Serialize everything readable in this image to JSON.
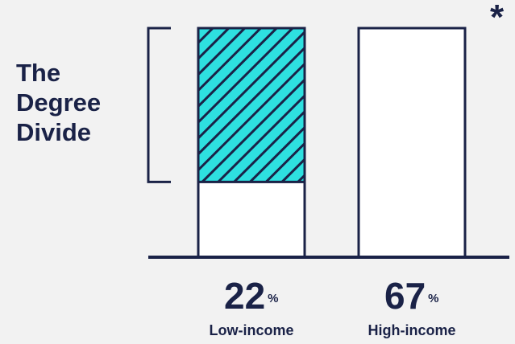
{
  "header": {
    "title_lines": [
      "The",
      "Degree",
      "Divide"
    ],
    "asterisk": "*"
  },
  "chart_data": {
    "type": "bar",
    "title": "The Degree Divide",
    "categories": [
      "Low-income",
      "High-income"
    ],
    "values": [
      22,
      67
    ],
    "value_suffix": "%",
    "ylim": [
      0,
      67
    ],
    "gap_highlight": {
      "from": 22,
      "to": 67,
      "pattern": "diagonal-hatch",
      "fill_color": "#2ee0e0"
    },
    "bar_fill_color": "#ffffff",
    "ink_color": "#1a2247",
    "grid": false,
    "legend": "none"
  }
}
